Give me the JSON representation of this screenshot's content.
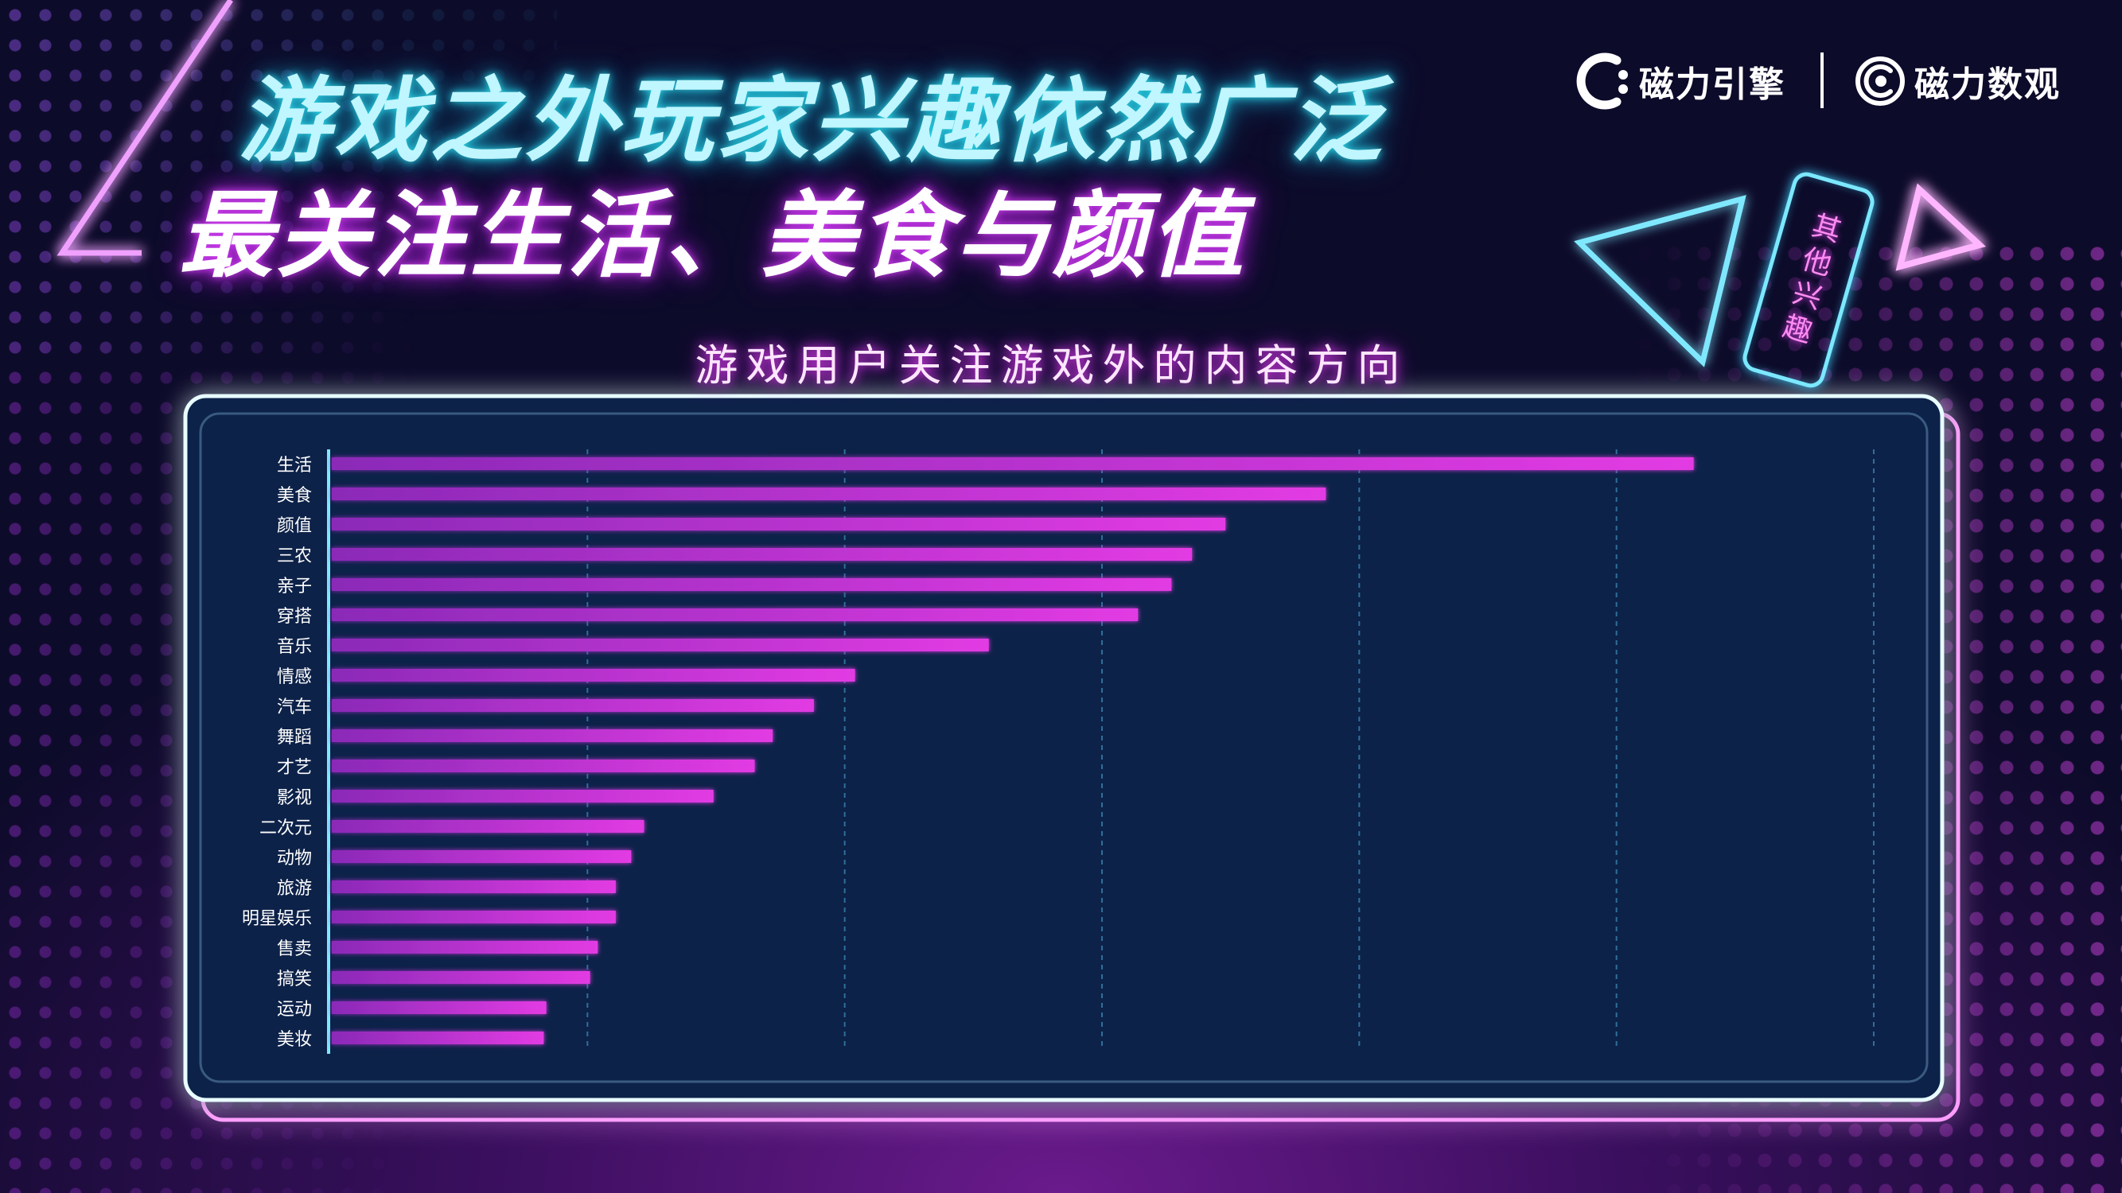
{
  "title": {
    "line1": "游戏之外玩家兴趣依然广泛",
    "line2": "最关注生活、美食与颜值"
  },
  "brands": {
    "engine": "磁力引擎",
    "insight": "磁力数观"
  },
  "tag": {
    "label": "其他兴趣"
  },
  "colors": {
    "bar": "#e23be3",
    "bar_start": "#8b2ab8",
    "panel_border": "#d9fbff",
    "title_cyan": "#bff6ff",
    "title_magenta_glow": "#d040f0"
  },
  "icons": [
    "magnet-engine-logo-icon",
    "magnet-insight-logo-icon",
    "neon-triangle-icon",
    "neon-triangle-outline-icon",
    "neon-corner-line-icon"
  ],
  "chart_data": {
    "type": "bar",
    "orientation": "horizontal",
    "title": "游戏用户关注游戏外的内容方向",
    "categories": [
      "生活",
      "美食",
      "颜值",
      "三农",
      "亲子",
      "穿搭",
      "音乐",
      "情感",
      "汽车",
      "舞蹈",
      "才艺",
      "影视",
      "二次元",
      "动物",
      "旅游",
      "明星娱乐",
      "售卖",
      "搞笑",
      "运动",
      "美妆"
    ],
    "values": [
      53.0,
      38.7,
      34.8,
      33.5,
      32.7,
      31.4,
      25.6,
      20.4,
      18.8,
      17.2,
      16.5,
      14.9,
      12.2,
      11.7,
      11.1,
      11.1,
      10.4,
      10.1,
      8.4,
      8.3
    ],
    "xlim": [
      0,
      60
    ],
    "grid": "vertical-dashed",
    "xlabel": "",
    "ylabel": "",
    "legend": "none"
  }
}
